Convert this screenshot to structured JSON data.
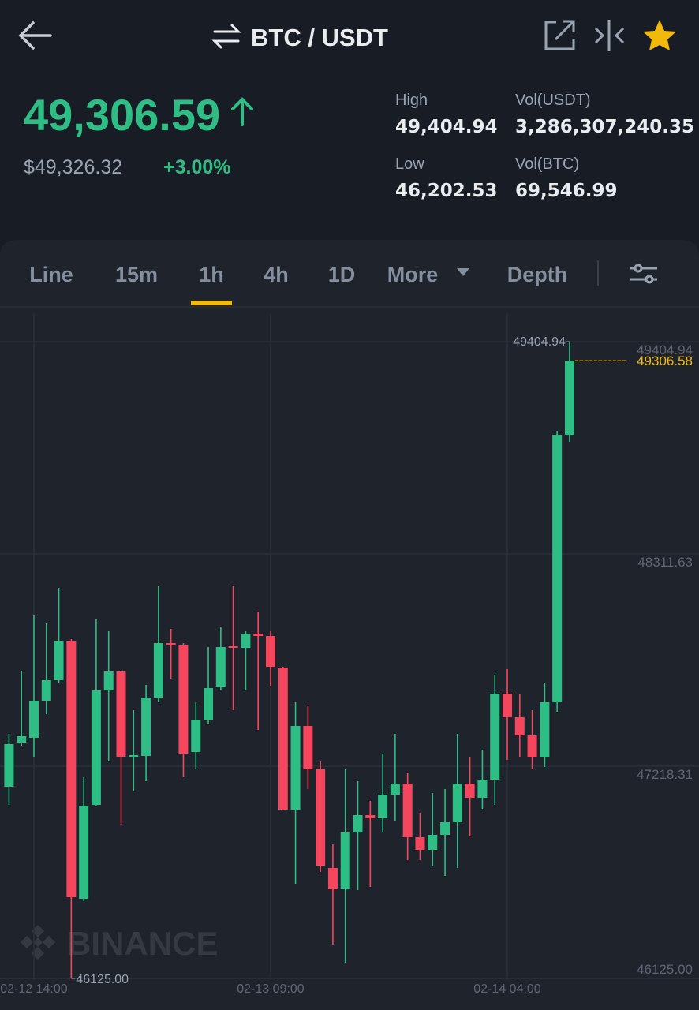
{
  "header": {
    "title": "BTC / USDT"
  },
  "ticker": {
    "last": "49,306.59",
    "fiat": "$49,326.32",
    "change": "+3.00%",
    "stats": [
      {
        "label": "High",
        "value": "49,404.94"
      },
      {
        "label": "Vol(USDT)",
        "value": "3,286,307,240.35"
      },
      {
        "label": "Low",
        "value": "46,202.53"
      },
      {
        "label": "Vol(BTC)",
        "value": "69,546.99"
      }
    ]
  },
  "tabs": [
    "Line",
    "15m",
    "1h",
    "4h",
    "1D",
    "More",
    "Depth"
  ],
  "active_tab": "1h",
  "watermark": "BINANCE",
  "chart_data": {
    "type": "candlestick",
    "categories": [
      null,
      null,
      "02-12 14:00",
      null,
      null,
      null,
      null,
      null,
      null,
      null,
      null,
      null,
      null,
      null,
      null,
      null,
      null,
      null,
      null,
      null,
      null,
      "02-13 09:00",
      null,
      null,
      null,
      null,
      null,
      null,
      null,
      null,
      null,
      null,
      null,
      null,
      null,
      null,
      null,
      null,
      null,
      null,
      "02-14 04:00",
      null,
      null,
      null,
      null,
      null
    ],
    "open": [
      47112.6,
      47340.2,
      47364.6,
      47555.6,
      47661.3,
      47864.5,
      46535.4,
      47019.1,
      47608.4,
      47706.0,
      47263.0,
      47271.1,
      47571.9,
      47852.3,
      47840.1,
      47291.4,
      47458.1,
      47624.7,
      47836.1,
      47827.9,
      47901.1,
      47888.9,
      47726.3,
      46994.7,
      47425.6,
      47202.0,
      46694.0,
      46584.2,
      46876.9,
      46966.3,
      46950.0,
      47071.9,
      47128.8,
      46852.5,
      46787.4,
      46864.7,
      46929.7,
      47128.8,
      47055.7,
      47149.2,
      47592.2,
      47470.3,
      47376.8,
      47263.0,
      47547.5,
      48925.3
    ],
    "high": [
      47384.9,
      47710.1,
      47994.6,
      47953.9,
      48136.8,
      47872.6,
      47161.4,
      47974.2,
      47913.3,
      47710.1,
      47506.8,
      47636.9,
      48145.0,
      47925.5,
      47852.3,
      47547.5,
      47832.0,
      47933.6,
      48145.0,
      47913.3,
      48014.9,
      47913.3,
      47730.4,
      47547.5,
      47527.2,
      47242.7,
      46815.9,
      47202.0,
      47141.0,
      47039.4,
      47283.3,
      47384.9,
      47181.7,
      46978.5,
      47080.1,
      47100.4,
      47384.9,
      47263.0,
      47303.6,
      47689.7,
      47718.2,
      47588.1,
      47506.8,
      47649.1,
      48945.6,
      49404.94
    ],
    "low": [
      47019.1,
      47323.9,
      47263.0,
      47486.5,
      47649.1,
      46125,
      46523.3,
      47011.0,
      47242.7,
      46917.5,
      47088.2,
      47141.0,
      47547.5,
      47669.4,
      47161.4,
      47202.0,
      47433.7,
      47608.4,
      47506.8,
      47608.4,
      47405.2,
      47628.8,
      46990.7,
      46612.7,
      47100.4,
      46673.6,
      46299.7,
      46206.2,
      46580.2,
      46596.4,
      46876.9,
      46937.8,
      46734.6,
      46734.6,
      46702.1,
      46653.3,
      46694.0,
      46856.5,
      46998.8,
      47019.1,
      47250.8,
      47263.0,
      47202.0,
      47214.2,
      47498.7,
      48888.7
    ],
    "close": [
      47332.1,
      47372.7,
      47555.6,
      47661.3,
      47864.5,
      46543.6,
      47015.0,
      47608.4,
      47706.0,
      47267.0,
      47275.2,
      47571.9,
      47852.3,
      47840.1,
      47283.3,
      47458.1,
      47620.6,
      47832.0,
      47827.9,
      47901.1,
      47888.9,
      47730.4,
      46994.7,
      47425.6,
      47202.0,
      46706.2,
      46584.2,
      46876.9,
      46966.3,
      46950.0,
      47071.9,
      47128.8,
      46852.5,
      46787.4,
      46864.7,
      46929.7,
      47128.8,
      47055.7,
      47149.2,
      47592.2,
      47470.3,
      47376.8,
      47263.0,
      47547.5,
      48925.3,
      49306.58
    ],
    "low_marker": {
      "value": 46125,
      "label": "46125.00"
    },
    "ylim": [
      46125,
      49551.2
    ],
    "yticks": [
      {
        "value": 46125,
        "label": "46125.00"
      },
      47218.31,
      48311.63,
      49404.94
    ],
    "grid": true,
    "up_color": "#2ebd85",
    "down_color": "#f6465d",
    "last_price_color": "#f0b90b"
  }
}
